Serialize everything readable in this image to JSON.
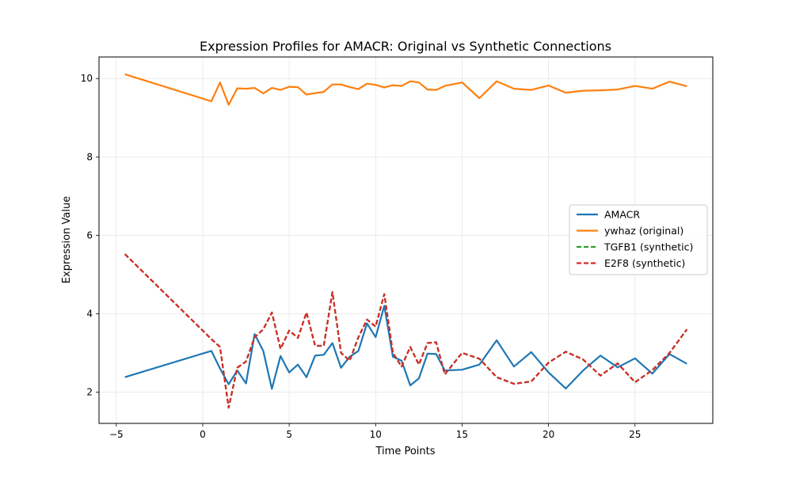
{
  "chart_data": {
    "type": "line",
    "title": "Expression Profiles for AMACR: Original vs Synthetic Connections",
    "xlabel": "Time Points",
    "ylabel": "Expression Value",
    "xlim": [
      -6,
      29.5
    ],
    "ylim": [
      1.2,
      10.55
    ],
    "xticks": [
      -5,
      0,
      5,
      10,
      15,
      20,
      25
    ],
    "yticks": [
      2,
      4,
      6,
      8,
      10
    ],
    "grid": true,
    "legend_position": "center-right",
    "x": [
      -4.5,
      0.5,
      1,
      1.5,
      2,
      2.5,
      3,
      3.5,
      4,
      4.5,
      5,
      5.5,
      6,
      6.5,
      7,
      7.5,
      8,
      8.5,
      9,
      9.5,
      10,
      10.5,
      11,
      11.5,
      12,
      12.5,
      13,
      13.5,
      14,
      15,
      16,
      17,
      18,
      19,
      20,
      21,
      22,
      23,
      24,
      25,
      26,
      27,
      28
    ],
    "series": [
      {
        "name": "AMACR",
        "color": "#1f77b4",
        "style": "solid",
        "values": [
          2.38,
          3.05,
          2.6,
          2.2,
          2.55,
          2.22,
          3.48,
          3.05,
          2.08,
          2.92,
          2.5,
          2.7,
          2.38,
          2.93,
          2.95,
          3.25,
          2.62,
          2.9,
          3.05,
          3.75,
          3.4,
          4.2,
          2.9,
          2.8,
          2.17,
          2.35,
          2.98,
          2.97,
          2.55,
          2.57,
          2.7,
          3.32,
          2.65,
          3.02,
          2.5,
          2.09,
          2.55,
          2.93,
          2.63,
          2.86,
          2.47,
          2.97,
          2.72
        ]
      },
      {
        "name": "ywhaz (original)",
        "color": "#ff7f0e",
        "style": "solid",
        "values": [
          10.11,
          9.42,
          9.9,
          9.33,
          9.75,
          9.74,
          9.76,
          9.62,
          9.76,
          9.71,
          9.79,
          9.78,
          9.59,
          9.63,
          9.66,
          9.85,
          9.85,
          9.78,
          9.73,
          9.87,
          9.84,
          9.77,
          9.83,
          9.81,
          9.93,
          9.9,
          9.72,
          9.71,
          9.81,
          9.9,
          9.5,
          9.93,
          9.74,
          9.71,
          9.82,
          9.64,
          9.69,
          9.7,
          9.72,
          9.81,
          9.74,
          9.92,
          9.8
        ]
      },
      {
        "name": "TGFB1 (synthetic)",
        "color": "#2ca02c",
        "style": "dashed",
        "values": [
          5.52,
          3.35,
          3.15,
          1.6,
          2.62,
          2.78,
          3.4,
          3.6,
          4.03,
          3.1,
          3.57,
          3.38,
          4.03,
          3.18,
          3.18,
          4.55,
          3.0,
          2.8,
          3.4,
          3.85,
          3.67,
          4.5,
          3.0,
          2.65,
          3.15,
          2.7,
          3.25,
          3.27,
          2.45,
          3.0,
          2.85,
          2.38,
          2.21,
          2.27,
          2.75,
          3.03,
          2.83,
          2.42,
          2.73,
          2.25,
          2.56,
          3.0,
          3.6
        ]
      },
      {
        "name": "E2F8 (synthetic)",
        "color": "#d62728",
        "style": "dashed",
        "values": [
          5.52,
          3.35,
          3.15,
          1.6,
          2.62,
          2.78,
          3.4,
          3.6,
          4.03,
          3.1,
          3.57,
          3.38,
          4.03,
          3.18,
          3.18,
          4.55,
          3.0,
          2.8,
          3.4,
          3.85,
          3.67,
          4.5,
          3.0,
          2.65,
          3.15,
          2.7,
          3.25,
          3.27,
          2.45,
          3.0,
          2.85,
          2.38,
          2.21,
          2.27,
          2.75,
          3.03,
          2.83,
          2.42,
          2.73,
          2.25,
          2.56,
          3.0,
          3.6
        ]
      }
    ]
  }
}
